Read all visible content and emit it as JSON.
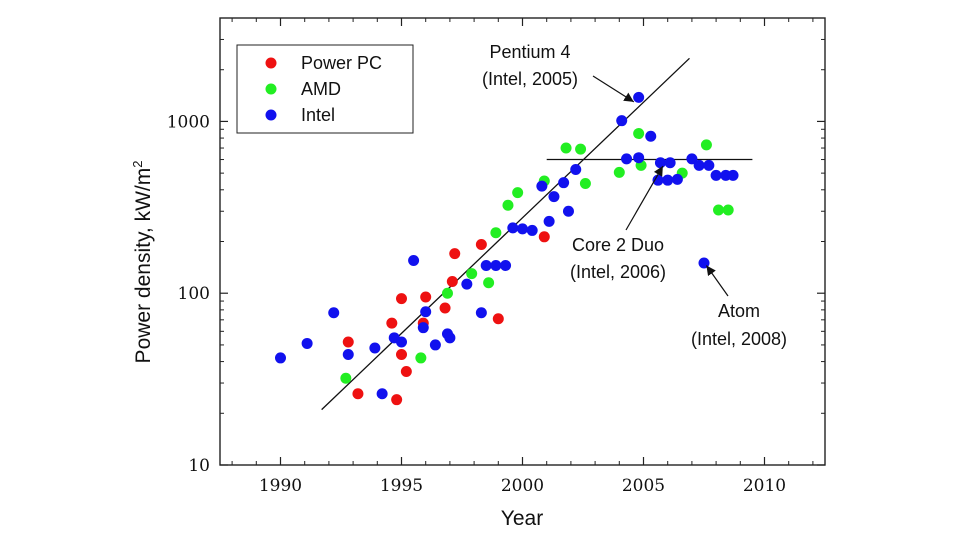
{
  "chart_data": {
    "type": "scatter",
    "title": "",
    "xlabel": "Year",
    "ylabel": "Power density, kW/m",
    "ylabel_superscript": "2",
    "xlim": [
      1987.5,
      2012.5
    ],
    "ylim": [
      10,
      4000
    ],
    "yscale": "log",
    "grid": false,
    "legend_position": "top-left",
    "x_ticks": [
      1990,
      1995,
      2000,
      2005,
      2010
    ],
    "x_tick_labels": [
      "1990",
      "1995",
      "2000",
      "2005",
      "2010"
    ],
    "y_ticks": [
      10,
      100,
      1000
    ],
    "y_tick_labels": [
      "10",
      "100",
      "1000"
    ],
    "series": [
      {
        "name": "Power PC",
        "color": "#ee1111",
        "points": [
          [
            1992.8,
            52
          ],
          [
            1993.2,
            26
          ],
          [
            1994.6,
            67
          ],
          [
            1994.8,
            24
          ],
          [
            1995.0,
            93
          ],
          [
            1995.0,
            44
          ],
          [
            1995.2,
            35
          ],
          [
            1995.9,
            67
          ],
          [
            1996.0,
            95
          ],
          [
            1996.8,
            82
          ],
          [
            1997.1,
            117
          ],
          [
            1997.2,
            170
          ],
          [
            1998.3,
            192
          ],
          [
            1999.0,
            71
          ],
          [
            2000.9,
            213
          ]
        ]
      },
      {
        "name": "AMD",
        "color": "#22ee22",
        "points": [
          [
            1992.7,
            32
          ],
          [
            1995.8,
            42
          ],
          [
            1996.9,
            100
          ],
          [
            1997.9,
            130
          ],
          [
            1998.6,
            115
          ],
          [
            1998.9,
            225
          ],
          [
            1999.4,
            325
          ],
          [
            1999.8,
            385
          ],
          [
            2000.9,
            450
          ],
          [
            2001.8,
            700
          ],
          [
            2002.4,
            690
          ],
          [
            2002.6,
            435
          ],
          [
            2004.0,
            505
          ],
          [
            2004.8,
            850
          ],
          [
            2004.9,
            555
          ],
          [
            2006.6,
            500
          ],
          [
            2007.6,
            730
          ],
          [
            2008.1,
            305
          ],
          [
            2008.5,
            305
          ]
        ]
      },
      {
        "name": "Intel",
        "color": "#1111ee",
        "points": [
          [
            1990.0,
            42
          ],
          [
            1991.1,
            51
          ],
          [
            1992.2,
            77
          ],
          [
            1992.8,
            44
          ],
          [
            1993.9,
            48
          ],
          [
            1994.2,
            26
          ],
          [
            1994.7,
            55
          ],
          [
            1995.0,
            52
          ],
          [
            1995.5,
            155
          ],
          [
            1995.9,
            63
          ],
          [
            1996.0,
            78
          ],
          [
            1996.4,
            50
          ],
          [
            1996.9,
            58
          ],
          [
            1997.0,
            55
          ],
          [
            1997.7,
            113
          ],
          [
            1998.3,
            77
          ],
          [
            1998.5,
            145
          ],
          [
            1998.9,
            145
          ],
          [
            1999.3,
            145
          ],
          [
            1999.6,
            240
          ],
          [
            2000.0,
            237
          ],
          [
            2000.4,
            232
          ],
          [
            2000.8,
            420
          ],
          [
            2001.1,
            262
          ],
          [
            2001.3,
            365
          ],
          [
            2001.7,
            440
          ],
          [
            2001.9,
            300
          ],
          [
            2002.2,
            525
          ],
          [
            2004.1,
            1010
          ],
          [
            2004.3,
            605
          ],
          [
            2004.8,
            615
          ],
          [
            2004.8,
            1380
          ],
          [
            2005.3,
            820
          ],
          [
            2005.6,
            455
          ],
          [
            2005.7,
            575
          ],
          [
            2006.0,
            455
          ],
          [
            2006.1,
            575
          ],
          [
            2006.4,
            460
          ],
          [
            2007.0,
            605
          ],
          [
            2007.3,
            555
          ],
          [
            2007.5,
            150
          ],
          [
            2007.7,
            555
          ],
          [
            2008.0,
            485
          ],
          [
            2008.4,
            485
          ],
          [
            2008.7,
            485
          ]
        ]
      }
    ],
    "lines": [
      {
        "label": "trend",
        "x": [
          1991.7,
          2006.9
        ],
        "y": [
          21,
          2330
        ]
      },
      {
        "label": "plateau",
        "x": [
          2001.0,
          2009.5
        ],
        "y": [
          600,
          600
        ]
      }
    ],
    "annotations": [
      {
        "lines": [
          "Pentium 4",
          "(Intel, 2005)"
        ],
        "target": [
          2004.6,
          1300
        ]
      },
      {
        "lines": [
          "Core 2 Duo",
          "(Intel, 2006)"
        ],
        "target": [
          2005.8,
          550
        ]
      },
      {
        "lines": [
          "Atom",
          "(Intel, 2008)"
        ],
        "target": [
          2007.6,
          145
        ]
      }
    ]
  }
}
